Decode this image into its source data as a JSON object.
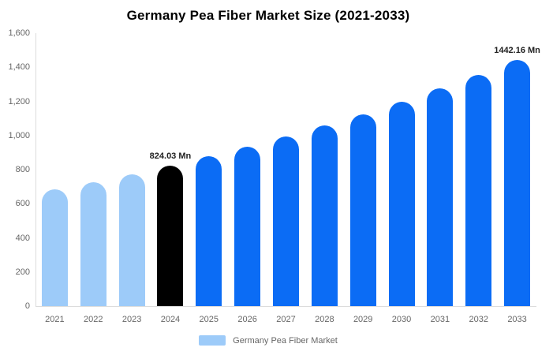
{
  "chart_data": {
    "type": "bar",
    "title": "Germany Pea Fiber Market Size (2021-2033)",
    "categories": [
      "2021",
      "2022",
      "2023",
      "2024",
      "2025",
      "2026",
      "2027",
      "2028",
      "2029",
      "2030",
      "2031",
      "2032",
      "2033"
    ],
    "values": [
      684,
      728,
      774,
      824.03,
      877,
      933,
      993,
      1057,
      1125,
      1197,
      1274,
      1355,
      1442.16
    ],
    "bar_colors": [
      "#9DCBF9",
      "#9DCBF9",
      "#9DCBF9",
      "#000000",
      "#0B6CF5",
      "#0B6CF5",
      "#0B6CF5",
      "#0B6CF5",
      "#0B6CF5",
      "#0B6CF5",
      "#0B6CF5",
      "#0B6CF5",
      "#0B6CF5"
    ],
    "data_labels": [
      {
        "category_index": 3,
        "text": "824.03 Mn"
      },
      {
        "category_index": 12,
        "text": "1442.16 Mn"
      }
    ],
    "xlabel": "",
    "ylabel": "",
    "ylim": [
      0,
      1600
    ],
    "ytick_labels": [
      "0",
      "200",
      "400",
      "600",
      "800",
      "1,000",
      "1,200",
      "1,400",
      "1,600"
    ],
    "grid": false,
    "legend_position": "bottom",
    "legend": [
      {
        "label": "Germany Pea Fiber Market",
        "color": "#9DCBF9"
      }
    ]
  },
  "colors": {
    "historical_bar": "#9DCBF9",
    "base_year_bar": "#000000",
    "forecast_bar": "#0B6CF5",
    "axis_line": "#DCDCDC",
    "tick_text": "#666666",
    "data_label_text": "#222222",
    "title_text": "#000000"
  }
}
